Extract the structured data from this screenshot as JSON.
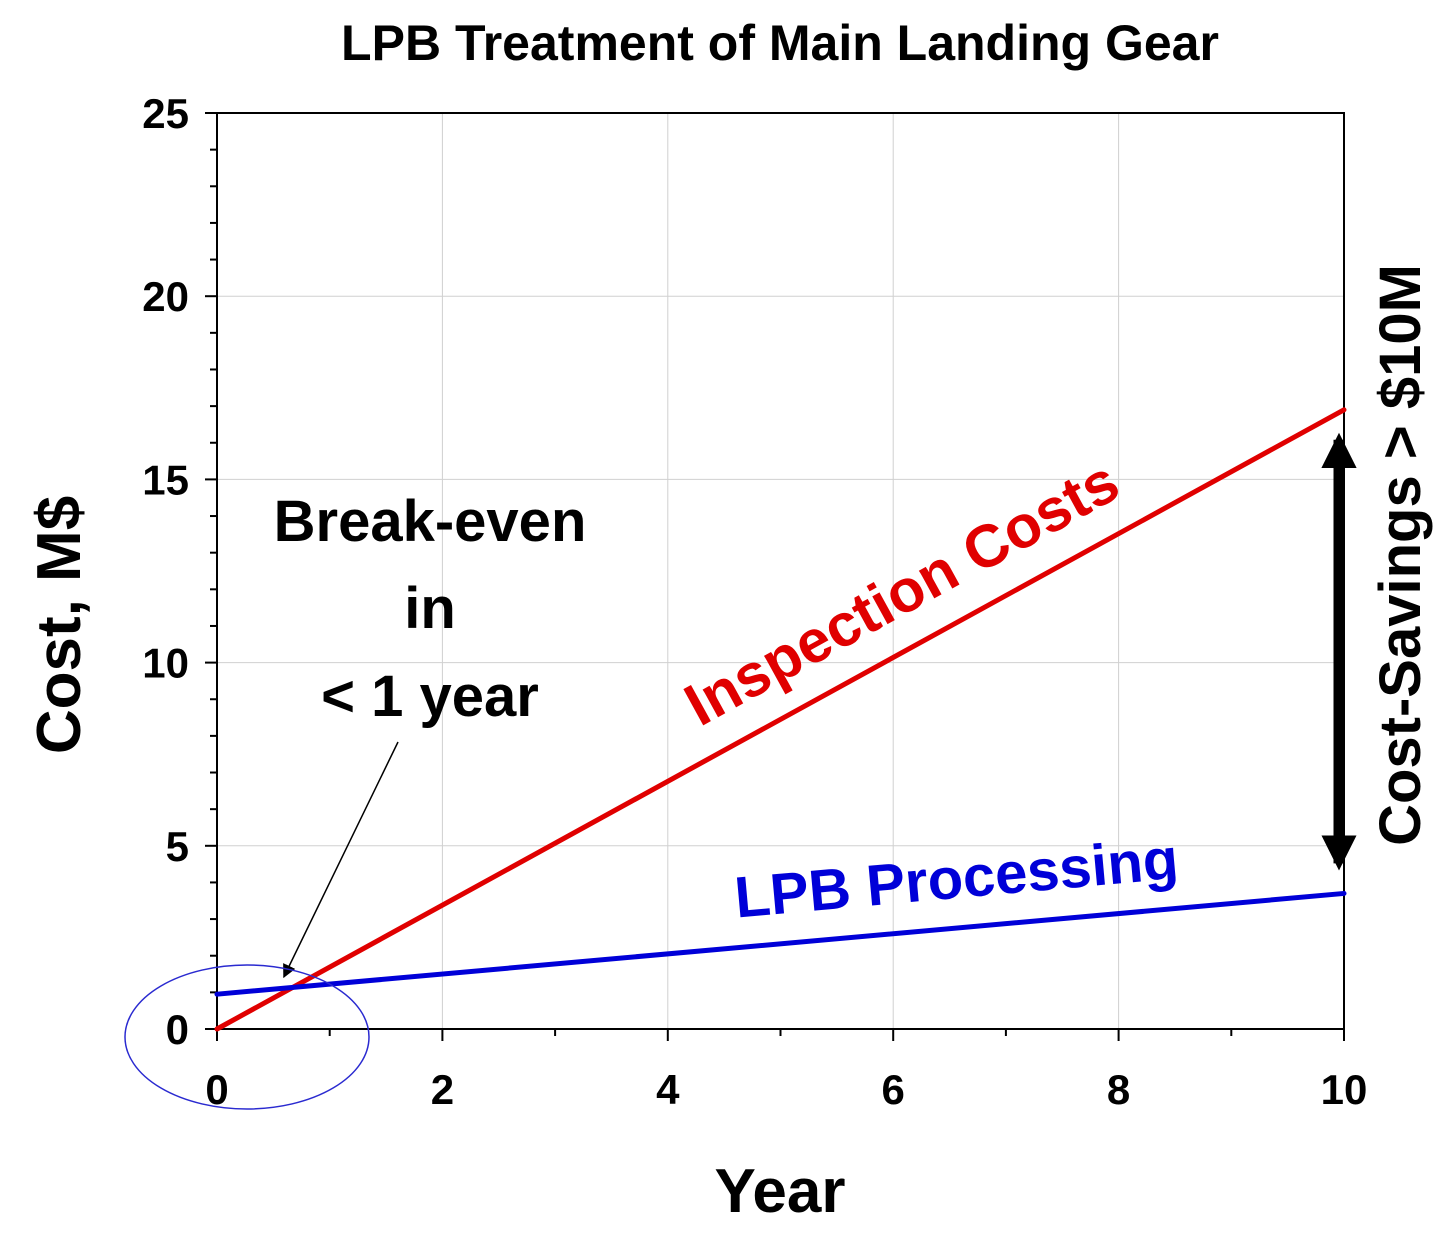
{
  "chart_data": {
    "type": "line",
    "title": "LPB Treatment of Main Landing Gear",
    "xlabel": "Year",
    "ylabel": "Cost, M$",
    "xlim": [
      0,
      10
    ],
    "ylim": [
      0,
      25
    ],
    "x_ticks": [
      0,
      2,
      4,
      6,
      8,
      10
    ],
    "y_ticks": [
      0,
      5,
      10,
      15,
      20,
      25
    ],
    "grid": true,
    "series": [
      {
        "name": "Inspection Costs",
        "color": "#e00000",
        "x": [
          0,
          10
        ],
        "y": [
          0,
          16.9
        ]
      },
      {
        "name": "LPB Processing",
        "color": "#0000d8",
        "x": [
          0,
          10
        ],
        "y": [
          0.95,
          3.7
        ]
      }
    ],
    "annotations": {
      "break_even": [
        "Break-even",
        "in",
        "< 1 year"
      ],
      "break_even_point": {
        "x": 0.7,
        "y": 1.15
      },
      "savings": "Cost-Savings > $10M",
      "savings_at_x": 10
    }
  }
}
